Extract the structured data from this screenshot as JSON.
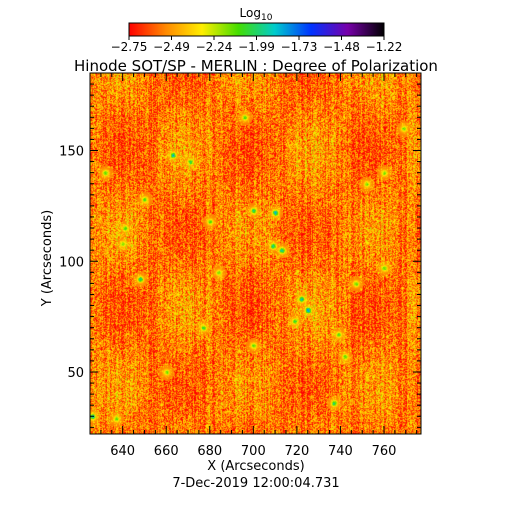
{
  "chart_data": {
    "type": "heatmap",
    "title": "Hinode SOT/SP - MERLIN : Degree of Polarization",
    "xlabel": "X (Arcseconds)",
    "ylabel": "Y (Arcseconds)",
    "timestamp": "7-Dec-2019 12:00:04.731",
    "xlim": [
      625,
      777
    ],
    "ylim": [
      22,
      185
    ],
    "xticks": [
      640,
      660,
      680,
      700,
      720,
      740,
      760
    ],
    "yticks": [
      50,
      100,
      150
    ],
    "colorbar": {
      "label_base": "Log",
      "label_sub": "10",
      "range": [
        -2.75,
        -1.22
      ],
      "ticks": [
        "-2.75",
        "-2.49",
        "-2.24",
        "-1.99",
        "-1.73",
        "-1.48",
        "-1.22"
      ],
      "colors": [
        "#ff0000",
        "#ff8800",
        "#ffee00",
        "#44dd00",
        "#00cccc",
        "#0033ff",
        "#7700aa",
        "#000000"
      ]
    },
    "background_level": -2.55,
    "features": [
      {
        "x": 663,
        "y": 148,
        "value": -1.75
      },
      {
        "x": 671,
        "y": 145,
        "value": -1.9
      },
      {
        "x": 700,
        "y": 123,
        "value": -1.85
      },
      {
        "x": 710,
        "y": 122,
        "value": -1.7
      },
      {
        "x": 709,
        "y": 107,
        "value": -1.8
      },
      {
        "x": 713,
        "y": 105,
        "value": -1.75
      },
      {
        "x": 680,
        "y": 118,
        "value": -2.0
      },
      {
        "x": 722,
        "y": 83,
        "value": -1.7
      },
      {
        "x": 725,
        "y": 78,
        "value": -1.6
      },
      {
        "x": 719,
        "y": 73,
        "value": -1.95
      },
      {
        "x": 677,
        "y": 70,
        "value": -1.95
      },
      {
        "x": 641,
        "y": 115,
        "value": -2.0
      },
      {
        "x": 648,
        "y": 92,
        "value": -1.85
      },
      {
        "x": 640,
        "y": 108,
        "value": -2.05
      },
      {
        "x": 747,
        "y": 90,
        "value": -2.0
      },
      {
        "x": 760,
        "y": 97,
        "value": -2.0
      },
      {
        "x": 739,
        "y": 67,
        "value": -2.0
      },
      {
        "x": 742,
        "y": 57,
        "value": -2.0
      },
      {
        "x": 737,
        "y": 36,
        "value": -1.85
      },
      {
        "x": 626,
        "y": 30,
        "value": -1.75
      },
      {
        "x": 637,
        "y": 29,
        "value": -2.0
      },
      {
        "x": 632,
        "y": 140,
        "value": -2.0
      },
      {
        "x": 650,
        "y": 128,
        "value": -2.0
      },
      {
        "x": 760,
        "y": 140,
        "value": -2.05
      },
      {
        "x": 752,
        "y": 135,
        "value": -2.05
      },
      {
        "x": 700,
        "y": 62,
        "value": -2.0
      },
      {
        "x": 660,
        "y": 50,
        "value": -2.05
      },
      {
        "x": 684,
        "y": 95,
        "value": -2.05
      },
      {
        "x": 769,
        "y": 160,
        "value": -2.05
      },
      {
        "x": 696,
        "y": 165,
        "value": -2.0
      }
    ]
  }
}
